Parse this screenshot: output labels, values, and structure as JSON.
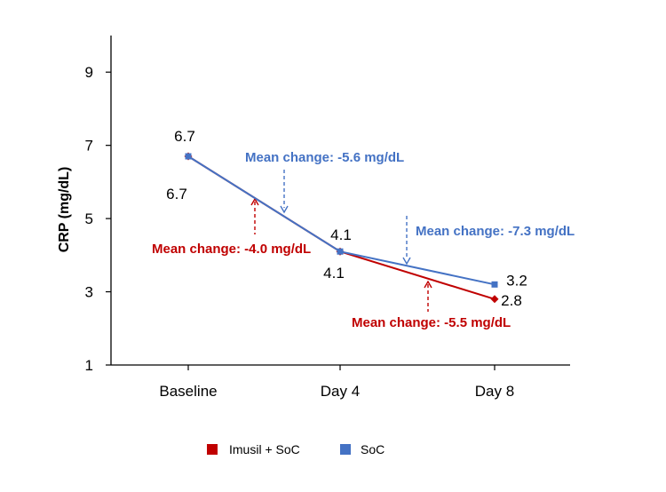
{
  "chart_data": {
    "type": "line",
    "title": "",
    "xlabel": "",
    "ylabel": "CRP (mg/dL)",
    "categories": [
      "Baseline",
      "Day 4",
      "Day 8"
    ],
    "ylim": [
      1,
      10
    ],
    "yticks": [
      1,
      3,
      5,
      7,
      9
    ],
    "series": [
      {
        "name": "Imusil + SoC",
        "color": "#c00000",
        "marker": "diamond",
        "values": [
          6.7,
          4.1,
          2.8
        ],
        "labels": [
          "6.7",
          "4.1",
          "2.8"
        ]
      },
      {
        "name": "SoC",
        "color": "#4472c4",
        "marker": "square",
        "values": [
          6.7,
          4.1,
          3.2
        ],
        "labels": [
          "6.7",
          "4.1",
          "3.2"
        ]
      }
    ],
    "annotations": [
      {
        "text": "Mean change: -5.6 mg/dL",
        "series": "SoC",
        "segment": "Baseline-Day 4",
        "color": "#4472c4"
      },
      {
        "text": "Mean change: -4.0 mg/dL",
        "series": "Imusil + SoC",
        "segment": "Baseline-Day 4",
        "color": "#c00000"
      },
      {
        "text": "Mean change: -7.3 mg/dL",
        "series": "SoC",
        "segment": "Day 4-Day 8",
        "color": "#4472c4"
      },
      {
        "text": "Mean change: -5.5 mg/dL",
        "series": "Imusil + SoC",
        "segment": "Day 4-Day 8",
        "color": "#c00000"
      }
    ],
    "legend": "bottom",
    "grid": false
  }
}
